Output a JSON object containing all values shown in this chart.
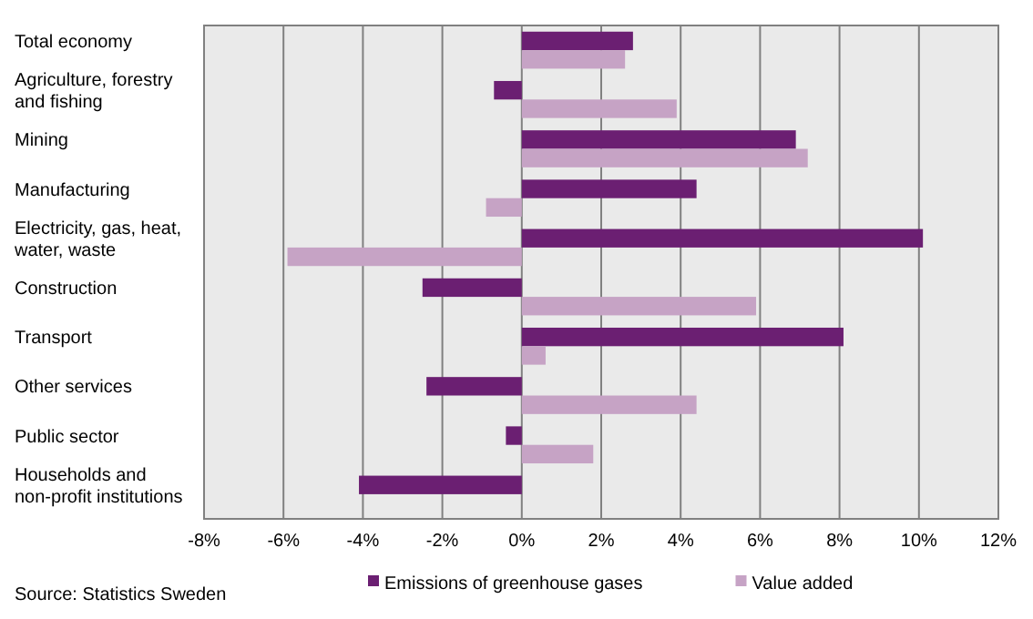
{
  "chart_data": {
    "type": "bar",
    "orientation": "horizontal",
    "categories": [
      "Total economy",
      "Agriculture, forestry and fishing",
      "Mining",
      "Manufacturing",
      "Electricity, gas, heat, water, waste",
      "Construction",
      "Transport",
      "Other services",
      "Public sector",
      "Households and non-profit institutions"
    ],
    "series": [
      {
        "name": "Emissions of greenhouse gases",
        "color": "#6b1f72",
        "values": [
          2.8,
          -0.7,
          6.9,
          4.4,
          10.1,
          -2.5,
          8.1,
          -2.4,
          -0.4,
          -4.1
        ]
      },
      {
        "name": "Value added",
        "color": "#c6a3c5",
        "values": [
          2.6,
          3.9,
          7.2,
          -0.9,
          -5.9,
          5.9,
          0.6,
          4.4,
          1.8,
          null
        ]
      }
    ],
    "xlim": [
      -8,
      12
    ],
    "xticks": [
      {
        "value": -8,
        "label": "-8%"
      },
      {
        "value": -6,
        "label": "-6%"
      },
      {
        "value": -4,
        "label": "-4%"
      },
      {
        "value": -2,
        "label": "-2%"
      },
      {
        "value": 0,
        "label": "0%"
      },
      {
        "value": 2,
        "label": "2%"
      },
      {
        "value": 4,
        "label": "4%"
      },
      {
        "value": 6,
        "label": "6%"
      },
      {
        "value": 8,
        "label": "8%"
      },
      {
        "value": 10,
        "label": "10%"
      },
      {
        "value": 12,
        "label": "12%"
      }
    ],
    "grid": "x",
    "legend": "bottom",
    "annotations": [
      "Source: Statistics Sweden"
    ]
  }
}
